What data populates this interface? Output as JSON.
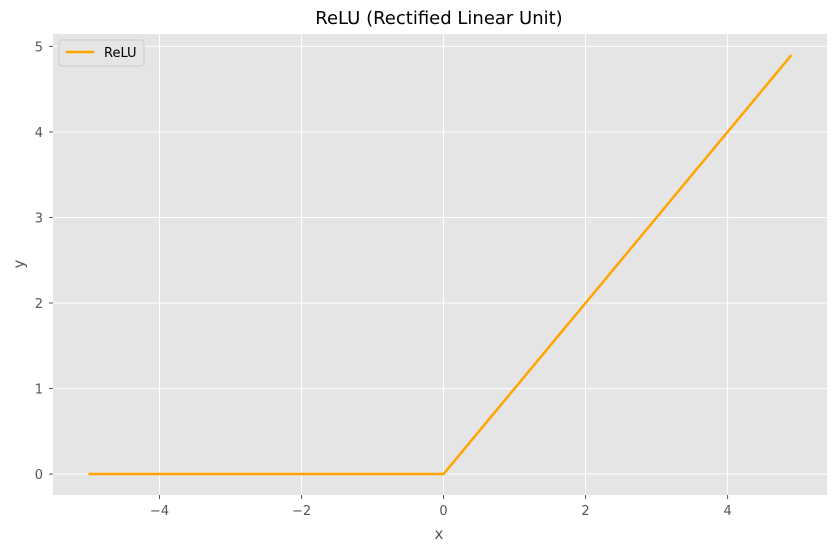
{
  "chart_data": {
    "type": "line",
    "title": "ReLU (Rectified Linear Unit)",
    "xlabel": "x",
    "ylabel": "y",
    "xlim": [
      -5.5,
      5.4
    ],
    "ylim": [
      -0.245,
      5.145
    ],
    "xticks": [
      -4,
      -2,
      0,
      2,
      4
    ],
    "yticks": [
      0,
      1,
      2,
      3,
      4,
      5
    ],
    "xtick_labels": [
      "−4",
      "−2",
      "0",
      "2",
      "4"
    ],
    "ytick_labels": [
      "0",
      "1",
      "2",
      "3",
      "4",
      "5"
    ],
    "grid": true,
    "legend_position": "top-left",
    "series": [
      {
        "name": "ReLU",
        "color": "#FFA500",
        "x": [
          -5.0,
          0.0,
          4.9
        ],
        "y": [
          0.0,
          0.0,
          4.9
        ]
      }
    ]
  },
  "colors": {
    "plot_background": "#E5E5E5",
    "grid": "#FFFFFF",
    "tick_text": "#555555"
  }
}
